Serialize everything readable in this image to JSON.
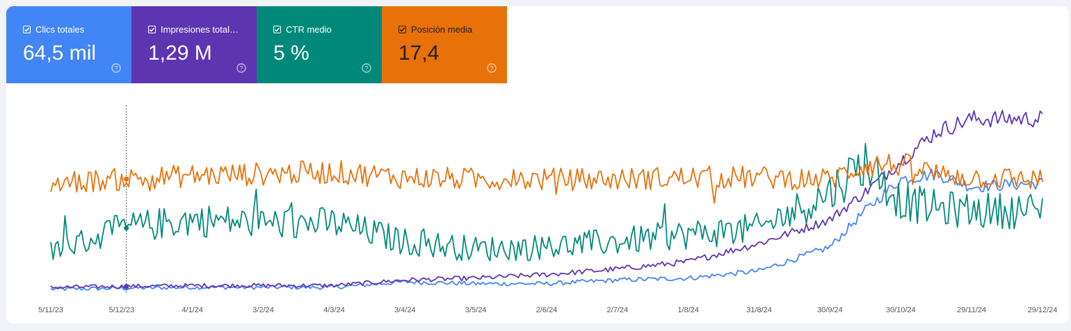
{
  "metrics": [
    {
      "label": "Clics totales",
      "value": "64,5 mil",
      "color": "#4285f4",
      "checked": true,
      "help_icon": "help-circle-icon"
    },
    {
      "label": "Impresiones total…",
      "value": "1,29 M",
      "color": "#5e35b1",
      "checked": true,
      "help_icon": "help-circle-icon"
    },
    {
      "label": "CTR medio",
      "value": "5 %",
      "color": "#00897b",
      "checked": true,
      "help_icon": "help-circle-icon"
    },
    {
      "label": "Posición media",
      "value": "17,4",
      "color": "#e8710a",
      "checked": true,
      "help_icon": "help-circle-icon"
    }
  ],
  "chart_data": {
    "type": "line",
    "x_start": "2023-11-05",
    "x_end": "2024-12-29",
    "x_tick_labels": [
      "5/11/23",
      "5/12/23",
      "4/1/24",
      "3/2/24",
      "4/3/24",
      "3/4/24",
      "3/5/24",
      "2/6/24",
      "2/7/24",
      "1/8/24",
      "31/8/24",
      "30/9/24",
      "30/10/24",
      "29/11/24",
      "29/12/24"
    ],
    "hover_date": "2023-12-07",
    "y_axis_visible": false,
    "grid": false,
    "series_colors": [
      "#4285f4",
      "#5e35b1",
      "#00897b",
      "#e8710a"
    ],
    "series": [
      {
        "metric": "Clics totales",
        "relative_level": [
          [
            0,
            0.02
          ],
          [
            60,
            0.03
          ],
          [
            120,
            0.03
          ],
          [
            150,
            0.06
          ],
          [
            180,
            0.05
          ],
          [
            210,
            0.05
          ],
          [
            240,
            0.07
          ],
          [
            270,
            0.08
          ],
          [
            300,
            0.12
          ],
          [
            330,
            0.25
          ],
          [
            345,
            0.45
          ],
          [
            360,
            0.62
          ],
          [
            375,
            0.65
          ],
          [
            390,
            0.58
          ],
          [
            420,
            0.6
          ]
        ]
      },
      {
        "metric": "Impresiones totales",
        "relative_level": [
          [
            0,
            0.03
          ],
          [
            60,
            0.04
          ],
          [
            120,
            0.04
          ],
          [
            150,
            0.07
          ],
          [
            180,
            0.08
          ],
          [
            210,
            0.1
          ],
          [
            240,
            0.13
          ],
          [
            270,
            0.17
          ],
          [
            300,
            0.27
          ],
          [
            330,
            0.4
          ],
          [
            345,
            0.55
          ],
          [
            360,
            0.72
          ],
          [
            375,
            0.88
          ],
          [
            390,
            0.95
          ],
          [
            420,
            0.95
          ]
        ]
      },
      {
        "metric": "CTR medio",
        "relative_level": [
          [
            0,
            0.22
          ],
          [
            30,
            0.35
          ],
          [
            60,
            0.4
          ],
          [
            90,
            0.38
          ],
          [
            120,
            0.38
          ],
          [
            150,
            0.28
          ],
          [
            180,
            0.24
          ],
          [
            210,
            0.25
          ],
          [
            240,
            0.28
          ],
          [
            270,
            0.32
          ],
          [
            300,
            0.35
          ],
          [
            330,
            0.55
          ],
          [
            345,
            0.72
          ],
          [
            360,
            0.5
          ],
          [
            375,
            0.46
          ],
          [
            390,
            0.45
          ],
          [
            420,
            0.45
          ]
        ]
      },
      {
        "metric": "Posición media",
        "relative_level": [
          [
            0,
            0.6
          ],
          [
            30,
            0.62
          ],
          [
            60,
            0.64
          ],
          [
            90,
            0.65
          ],
          [
            120,
            0.66
          ],
          [
            150,
            0.63
          ],
          [
            180,
            0.62
          ],
          [
            210,
            0.62
          ],
          [
            240,
            0.62
          ],
          [
            270,
            0.63
          ],
          [
            300,
            0.63
          ],
          [
            330,
            0.62
          ],
          [
            345,
            0.7
          ],
          [
            360,
            0.7
          ],
          [
            375,
            0.65
          ],
          [
            390,
            0.63
          ],
          [
            420,
            0.62
          ]
        ]
      }
    ]
  }
}
